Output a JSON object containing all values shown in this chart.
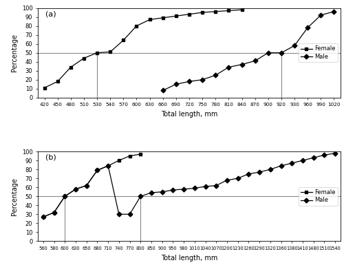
{
  "panel_a": {
    "female_x": [
      420,
      450,
      480,
      510,
      530,
      540,
      570,
      600,
      630,
      660,
      690,
      720,
      750,
      780,
      810,
      840
    ],
    "female_y": [
      11,
      18,
      34,
      44,
      50,
      51,
      64,
      80,
      87,
      89,
      91,
      93,
      95,
      96,
      97,
      98
    ],
    "male_x": [
      660,
      690,
      720,
      750,
      780,
      810,
      840,
      870,
      900,
      920,
      930,
      960,
      990,
      1020
    ],
    "male_y": [
      8,
      15,
      18,
      20,
      25,
      34,
      37,
      41,
      50,
      50,
      58,
      78,
      92,
      96
    ],
    "hline_y": 50,
    "vline_female_x": 530,
    "vline_male_x": 920,
    "xticks": [
      420,
      450,
      480,
      510,
      530,
      540,
      570,
      600,
      630,
      660,
      690,
      720,
      750,
      780,
      810,
      840,
      870,
      900,
      920,
      930,
      960,
      990,
      1020
    ],
    "yticks": [
      0,
      10,
      20,
      30,
      40,
      50,
      60,
      70,
      80,
      90,
      100
    ],
    "xlabel": "Total length, mm",
    "ylabel": "Percentage",
    "label": "(a)",
    "ylim": [
      0,
      100
    ],
    "legend_female": "Female",
    "legend_male": "Male"
  },
  "panel_b": {
    "female_x": [
      560,
      580,
      600,
      630,
      650,
      680,
      710,
      740,
      770,
      800
    ],
    "female_y": [
      27,
      32,
      50,
      58,
      62,
      79,
      84,
      90,
      95,
      97
    ],
    "male_x": [
      560,
      580,
      600,
      630,
      650,
      680,
      710,
      740,
      770,
      800,
      850,
      900,
      950,
      980,
      1010,
      1040,
      1070,
      1200,
      1230,
      1260,
      1290,
      1320,
      1360,
      1380,
      1410,
      1480,
      1510,
      1540
    ],
    "male_y": [
      27,
      32,
      50,
      58,
      62,
      79,
      84,
      30,
      30,
      50,
      54,
      55,
      57,
      58,
      59,
      61,
      62,
      68,
      70,
      75,
      77,
      80,
      84,
      87,
      90,
      93,
      96,
      98
    ],
    "hline_y": 50,
    "vline_female_x": 600,
    "vline_male_x": 800,
    "xticks": [
      560,
      580,
      600,
      630,
      650,
      680,
      710,
      740,
      770,
      800,
      850,
      900,
      950,
      980,
      1010,
      1040,
      1070,
      1200,
      1230,
      1260,
      1290,
      1320,
      1360,
      1380,
      1410,
      1480,
      1510,
      1540
    ],
    "yticks": [
      0,
      10,
      20,
      30,
      40,
      50,
      60,
      70,
      80,
      90,
      100
    ],
    "xlabel": "Total length, mm",
    "ylabel": "Percentage",
    "label": "(b)",
    "ylim": [
      0,
      100
    ],
    "legend_female": "Female",
    "legend_male": "Male"
  },
  "fig_bg": "#ffffff",
  "line_color": "#000000",
  "marker_square": "s",
  "marker_diamond": "D",
  "marker_size": 3.5,
  "line_width": 0.9,
  "hline_color": "#888888",
  "vline_color": "#888888"
}
